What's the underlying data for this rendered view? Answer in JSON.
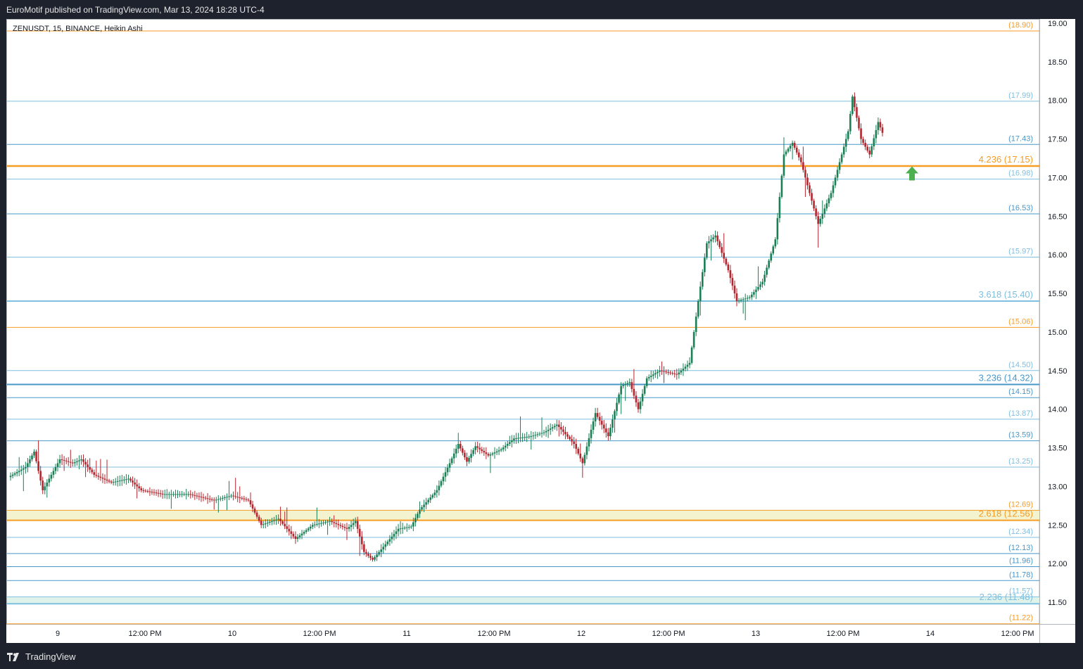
{
  "header": {
    "published_text": "EuroMotif published on TradingView.com, Mar 13, 2024 18:28 UTC-4"
  },
  "footer": {
    "brand": "TradingView",
    "logo_icon": "tradingview-logo-icon"
  },
  "chart_data": {
    "type": "candlestick",
    "title": "ZENUSDT, 15, BINANCE, Heikin Ashi",
    "ylim": [
      11.15,
      19.1
    ],
    "y_ticks": [
      "19.00",
      "18.50",
      "18.00",
      "17.50",
      "17.00",
      "16.50",
      "16.00",
      "15.50",
      "15.00",
      "14.50",
      "14.00",
      "13.50",
      "13.00",
      "12.50",
      "12.00",
      "11.50"
    ],
    "x_ticks": [
      "9",
      "12:00 PM",
      "10",
      "12:00 PM",
      "11",
      "12:00 PM",
      "12",
      "12:00 PM",
      "13",
      "12:00 PM",
      "14",
      "12:00 PM"
    ],
    "levels": [
      {
        "value": 18.9,
        "label": "(18.90)",
        "color": "#f59d25",
        "width": 1
      },
      {
        "value": 17.99,
        "label": "(17.99)",
        "color": "#7fbfe0",
        "width": 1
      },
      {
        "value": 17.43,
        "label": "(17.43)",
        "color": "#4a97c9",
        "width": 1
      },
      {
        "value": 17.15,
        "label": "4.236 (17.15)",
        "color": "#f59d25",
        "width": 2.5
      },
      {
        "value": 16.98,
        "label": "(16.98)",
        "color": "#7fbfe0",
        "width": 1
      },
      {
        "value": 16.53,
        "label": "(16.53)",
        "color": "#4a97c9",
        "width": 1
      },
      {
        "value": 15.97,
        "label": "(15.97)",
        "color": "#7fbfe0",
        "width": 1
      },
      {
        "value": 15.4,
        "label": "3.618 (15.40)",
        "color": "#7fbfe0",
        "width": 2
      },
      {
        "value": 15.06,
        "label": "(15.06)",
        "color": "#f59d25",
        "width": 1
      },
      {
        "value": 14.5,
        "label": "(14.50)",
        "color": "#7fbfe0",
        "width": 1
      },
      {
        "value": 14.32,
        "label": "3.236 (14.32)",
        "color": "#4a97c9",
        "width": 2
      },
      {
        "value": 14.15,
        "label": "(14.15)",
        "color": "#4a97c9",
        "width": 1
      },
      {
        "value": 13.87,
        "label": "(13.87)",
        "color": "#7fbfe0",
        "width": 1
      },
      {
        "value": 13.59,
        "label": "(13.59)",
        "color": "#4a97c9",
        "width": 1
      },
      {
        "value": 13.25,
        "label": "(13.25)",
        "color": "#7fbfe0",
        "width": 1
      },
      {
        "value": 12.69,
        "label": "(12.69)",
        "color": "#f59d25",
        "width": 1
      },
      {
        "value": 12.56,
        "label": "2.618 (12.56)",
        "color": "#f59d25",
        "width": 2
      },
      {
        "value": 12.34,
        "label": "(12.34)",
        "color": "#7fbfe0",
        "width": 1
      },
      {
        "value": 12.13,
        "label": "(12.13)",
        "color": "#4a97c9",
        "width": 1
      },
      {
        "value": 11.96,
        "label": "(11.96)",
        "color": "#4a97c9",
        "width": 1
      },
      {
        "value": 11.78,
        "label": "(11.78)",
        "color": "#4a97c9",
        "width": 1
      },
      {
        "value": 11.57,
        "label": "(11.57)",
        "color": "#7fbfe0",
        "width": 1
      },
      {
        "value": 11.48,
        "label": "2.236 (11.48)",
        "color": "#7fbfe0",
        "width": 2
      },
      {
        "value": 11.22,
        "label": "(11.22)",
        "color": "#f59d25",
        "width": 1
      }
    ],
    "zones": [
      {
        "from": 12.56,
        "to": 12.69,
        "color": "#f3f3d0"
      },
      {
        "from": 11.48,
        "to": 11.57,
        "color": "#dff3ea"
      }
    ],
    "arrow": {
      "direction": "up",
      "value": 17.0,
      "color": "#4caf50"
    },
    "up_color": "#1b7f56",
    "down_color": "#b5262f",
    "path_keypoints": [
      [
        0,
        13.12
      ],
      [
        8,
        13.25
      ],
      [
        12,
        13.45
      ],
      [
        16,
        12.95
      ],
      [
        24,
        13.35
      ],
      [
        30,
        13.3
      ],
      [
        34,
        13.35
      ],
      [
        40,
        13.15
      ],
      [
        48,
        13.05
      ],
      [
        56,
        13.1
      ],
      [
        62,
        12.95
      ],
      [
        72,
        12.9
      ],
      [
        84,
        12.9
      ],
      [
        96,
        12.82
      ],
      [
        104,
        12.88
      ],
      [
        112,
        12.82
      ],
      [
        118,
        12.5
      ],
      [
        126,
        12.58
      ],
      [
        134,
        12.32
      ],
      [
        142,
        12.5
      ],
      [
        150,
        12.55
      ],
      [
        158,
        12.45
      ],
      [
        162,
        12.55
      ],
      [
        166,
        12.15
      ],
      [
        170,
        12.05
      ],
      [
        176,
        12.25
      ],
      [
        182,
        12.45
      ],
      [
        188,
        12.48
      ],
      [
        192,
        12.7
      ],
      [
        200,
        12.95
      ],
      [
        206,
        13.3
      ],
      [
        210,
        13.55
      ],
      [
        214,
        13.32
      ],
      [
        218,
        13.52
      ],
      [
        224,
        13.4
      ],
      [
        230,
        13.48
      ],
      [
        236,
        13.62
      ],
      [
        244,
        13.65
      ],
      [
        250,
        13.7
      ],
      [
        256,
        13.8
      ],
      [
        264,
        13.55
      ],
      [
        268,
        13.3
      ],
      [
        274,
        13.95
      ],
      [
        280,
        13.65
      ],
      [
        286,
        14.3
      ],
      [
        290,
        14.35
      ],
      [
        294,
        14.0
      ],
      [
        298,
        14.4
      ],
      [
        304,
        14.5
      ],
      [
        312,
        14.45
      ],
      [
        318,
        14.6
      ],
      [
        322,
        15.4
      ],
      [
        326,
        16.15
      ],
      [
        330,
        16.25
      ],
      [
        336,
        15.8
      ],
      [
        340,
        15.4
      ],
      [
        346,
        15.45
      ],
      [
        352,
        15.65
      ],
      [
        358,
        16.2
      ],
      [
        362,
        17.3
      ],
      [
        366,
        17.45
      ],
      [
        370,
        17.2
      ],
      [
        374,
        16.8
      ],
      [
        378,
        16.4
      ],
      [
        384,
        16.8
      ],
      [
        388,
        17.2
      ],
      [
        392,
        17.6
      ],
      [
        394,
        18.05
      ],
      [
        398,
        17.5
      ],
      [
        402,
        17.3
      ],
      [
        406,
        17.72
      ],
      [
        408,
        17.58
      ]
    ]
  }
}
